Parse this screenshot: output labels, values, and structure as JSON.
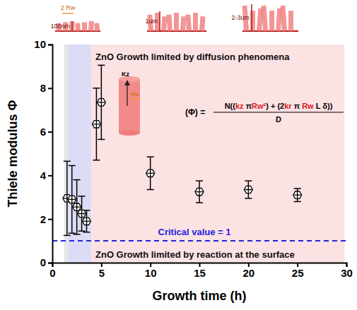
{
  "chart_data": {
    "type": "scatter",
    "x_label": "Growth time (h)",
    "y_label": "Thiele modulus Φ",
    "xlim": [
      0,
      30
    ],
    "xticks": [
      0,
      5,
      10,
      15,
      20,
      25,
      30
    ],
    "ylim": [
      0,
      10
    ],
    "yticks": [
      0,
      2,
      4,
      6,
      8,
      10
    ],
    "grid": false,
    "marker": "hexagon",
    "color": "#000000",
    "x": [
      1.5,
      2,
      2.5,
      3,
      3.5,
      4.5,
      5,
      10,
      15,
      20,
      25
    ],
    "values": [
      2.95,
      2.9,
      2.55,
      2.25,
      1.9,
      6.35,
      7.35,
      4.1,
      3.25,
      3.35,
      3.1
    ],
    "errors": [
      1.7,
      1.55,
      1.25,
      0.8,
      0.5,
      1.65,
      1.7,
      0.75,
      0.5,
      0.4,
      0.3
    ],
    "regions": [
      {
        "x0": 1.2,
        "x1": 1.6,
        "color": "#e6e6e6"
      },
      {
        "x0": 1.6,
        "x1": 4.0,
        "color": "#dcdcf6"
      },
      {
        "x0": 4.0,
        "x1": 29.8,
        "color": "#fbe2e3"
      }
    ],
    "reference_line": {
      "value": 1,
      "label": "Critical value = 1",
      "color": "#2323e0",
      "line_style": "dashed"
    },
    "annotations": {
      "top": "ZnO Growth limited by diffusion phenomena",
      "bottom": "ZnO Growth limited by reaction at the surface",
      "kz": "Kz",
      "rw": "Rw",
      "scale_labels": [
        "100nm",
        "1um",
        "2-3um"
      ],
      "diameter": "2 Rw"
    },
    "equation": {
      "lhs": "(Φ) =",
      "numerator": [
        {
          "text": "N(("
        },
        {
          "text": "kz",
          "color": "#e01818"
        },
        {
          "text": " π"
        },
        {
          "text": "Rw²",
          "color": "#e01818"
        },
        {
          "text": ") + (2"
        },
        {
          "text": "kr",
          "color": "#e01818"
        },
        {
          "text": " π "
        },
        {
          "text": "Rw",
          "color": "#e01818"
        },
        {
          "text": " L δ))"
        }
      ],
      "denominator": "D"
    }
  }
}
